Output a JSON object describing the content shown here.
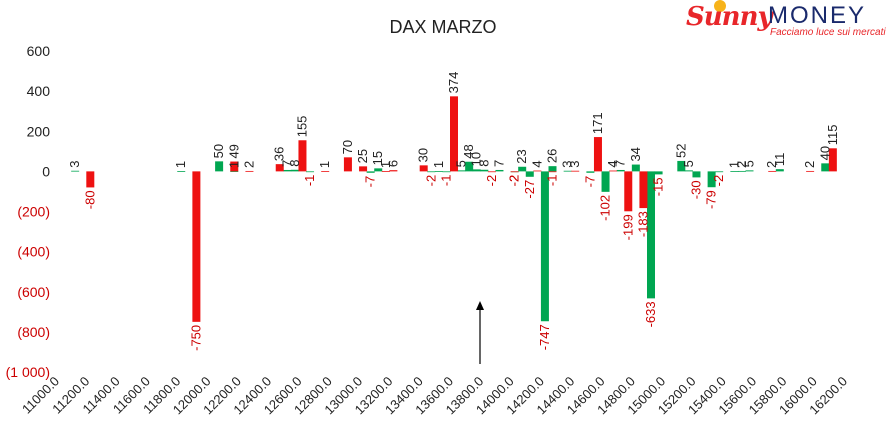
{
  "logo": {
    "brand_a": "Sunny",
    "brand_b": "MONEY",
    "tagline": "Facciamo luce sui mercati"
  },
  "colors": {
    "calls": "#00a651",
    "puts": "#ee1111",
    "neg_label": "#cc0000",
    "text": "#222222"
  },
  "chart_data": {
    "type": "bar",
    "title": "DAX MARZO",
    "xlabel": "",
    "ylabel": "",
    "ylim": [
      -1000,
      600
    ],
    "yticks": [
      600,
      400,
      200,
      0,
      -200,
      -400,
      -600,
      -800,
      -1000
    ],
    "ytick_labels": [
      "600",
      "400",
      "200",
      "0",
      "(200)",
      "(400)",
      "(600)",
      "(800)",
      "(1 000)"
    ],
    "xlim": [
      11000,
      16200
    ],
    "xticks": [
      11000,
      11200,
      11400,
      11600,
      11800,
      12000,
      12200,
      12400,
      12600,
      12800,
      13000,
      13200,
      13400,
      13600,
      13800,
      14000,
      14200,
      14400,
      14600,
      14800,
      15000,
      15200,
      15400,
      15600,
      15800,
      16000,
      16200
    ],
    "xtick_labels": [
      "11000.0",
      "11200.0",
      "11400.0",
      "11600.0",
      "11800.0",
      "12000.0",
      "12200.0",
      "12400.0",
      "12600.0",
      "12800.0",
      "13000.0",
      "13200.0",
      "13400.0",
      "13600.0",
      "13800.0",
      "14000.0",
      "14200.0",
      "14400.0",
      "14600.0",
      "14800.0",
      "15000.0",
      "15200.0",
      "15400.0",
      "15600.0",
      "15800.0",
      "16000.0",
      "16200.0"
    ],
    "grid": false,
    "legend": "none",
    "series": [
      {
        "color": "#00a651",
        "points": [
          {
            "x": 11100,
            "y": 3
          },
          {
            "x": 11800,
            "y": 1
          },
          {
            "x": 12050,
            "y": 50
          },
          {
            "x": 12150,
            "y": 1
          },
          {
            "x": 12500,
            "y": 7
          },
          {
            "x": 12550,
            "y": 8
          },
          {
            "x": 12650,
            "y": -1
          },
          {
            "x": 13050,
            "y": -7
          },
          {
            "x": 13100,
            "y": 15
          },
          {
            "x": 13450,
            "y": -2
          },
          {
            "x": 13500,
            "y": 1
          },
          {
            "x": 13550,
            "y": -1
          },
          {
            "x": 13650,
            "y": 5
          },
          {
            "x": 13700,
            "y": 48
          },
          {
            "x": 13750,
            "y": 10
          },
          {
            "x": 13800,
            "y": 8
          },
          {
            "x": 13900,
            "y": 7
          },
          {
            "x": 14000,
            "y": -2
          },
          {
            "x": 14050,
            "y": 23
          },
          {
            "x": 14100,
            "y": -27
          },
          {
            "x": 14200,
            "y": -747
          },
          {
            "x": 14250,
            "y": 26
          },
          {
            "x": 14350,
            "y": 3
          },
          {
            "x": 14500,
            "y": -7
          },
          {
            "x": 14600,
            "y": -102
          },
          {
            "x": 14700,
            "y": 7
          },
          {
            "x": 14800,
            "y": 34
          },
          {
            "x": 14900,
            "y": -633
          },
          {
            "x": 14950,
            "y": -15
          },
          {
            "x": 15100,
            "y": 52
          },
          {
            "x": 15150,
            "y": 5
          },
          {
            "x": 15200,
            "y": -30
          },
          {
            "x": 15300,
            "y": -79
          },
          {
            "x": 15350,
            "y": -2
          },
          {
            "x": 15450,
            "y": 1
          },
          {
            "x": 15500,
            "y": 2
          },
          {
            "x": 15550,
            "y": 5
          },
          {
            "x": 15750,
            "y": 11
          },
          {
            "x": 16050,
            "y": 40
          }
        ]
      },
      {
        "color": "#ee1111",
        "points": [
          {
            "x": 11200,
            "y": -80
          },
          {
            "x": 11900,
            "y": -750
          },
          {
            "x": 12150,
            "y": 49
          },
          {
            "x": 12250,
            "y": 2
          },
          {
            "x": 12450,
            "y": 36
          },
          {
            "x": 12600,
            "y": 155
          },
          {
            "x": 12750,
            "y": 1
          },
          {
            "x": 12900,
            "y": 70
          },
          {
            "x": 13000,
            "y": 25
          },
          {
            "x": 13150,
            "y": 1
          },
          {
            "x": 13200,
            "y": 6
          },
          {
            "x": 13400,
            "y": 30
          },
          {
            "x": 13600,
            "y": 374
          },
          {
            "x": 13850,
            "y": -2
          },
          {
            "x": 14000,
            "y": -2
          },
          {
            "x": 14150,
            "y": 4
          },
          {
            "x": 14250,
            "y": -1
          },
          {
            "x": 14400,
            "y": 3
          },
          {
            "x": 14550,
            "y": 171
          },
          {
            "x": 14650,
            "y": 4
          },
          {
            "x": 14750,
            "y": -199
          },
          {
            "x": 14850,
            "y": -183
          },
          {
            "x": 15700,
            "y": 2
          },
          {
            "x": 15950,
            "y": 2
          },
          {
            "x": 16100,
            "y": 115
          }
        ]
      }
    ]
  }
}
